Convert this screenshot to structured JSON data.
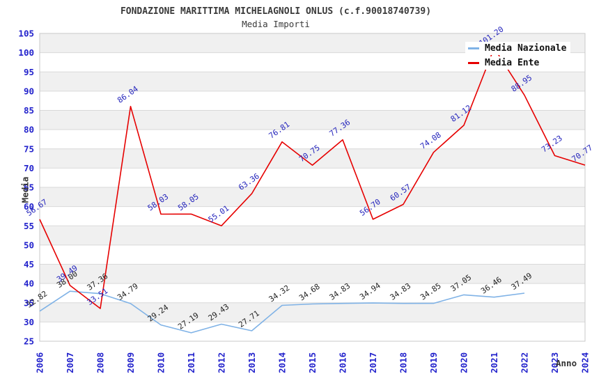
{
  "chart_data": {
    "type": "line",
    "title": "FONDAZIONE MARITTIMA MICHELAGNOLI ONLUS (c.f.90018740739)",
    "subtitle": "Media Importi",
    "xlabel": "Anno",
    "ylabel": "Media",
    "ylim": [
      25,
      105
    ],
    "ytick_step": 5,
    "grid": "horizontal-bands",
    "legend_position": "top-right-inside",
    "categories": [
      "2006",
      "2007",
      "2008",
      "2009",
      "2010",
      "2011",
      "2012",
      "2013",
      "2014",
      "2015",
      "2016",
      "2017",
      "2018",
      "2019",
      "2020",
      "2021",
      "2022",
      "2023",
      "2024"
    ],
    "series": [
      {
        "name": "Media Nazionale",
        "color": "#7fb2e6",
        "label_color": "#222222",
        "values": [
          32.82,
          38.0,
          37.36,
          34.79,
          29.24,
          27.19,
          29.43,
          27.71,
          34.32,
          34.68,
          34.83,
          34.94,
          34.83,
          34.85,
          37.05,
          36.46,
          37.49,
          null,
          null
        ]
      },
      {
        "name": "Media Ente",
        "color": "#e60000",
        "label_color": "#2424bc",
        "values": [
          56.67,
          39.49,
          33.51,
          86.04,
          58.03,
          58.05,
          55.01,
          63.36,
          76.81,
          70.75,
          77.36,
          56.7,
          60.57,
          74.08,
          81.12,
          101.2,
          88.95,
          73.23,
          70.77
        ]
      }
    ],
    "colors": {
      "axis_text": "#2222cc",
      "band_fill": "#f0f0f0",
      "grid_line": "#d9d9d9",
      "plot_border": "#c8c8c8",
      "title_text": "#3a3a3a"
    }
  }
}
